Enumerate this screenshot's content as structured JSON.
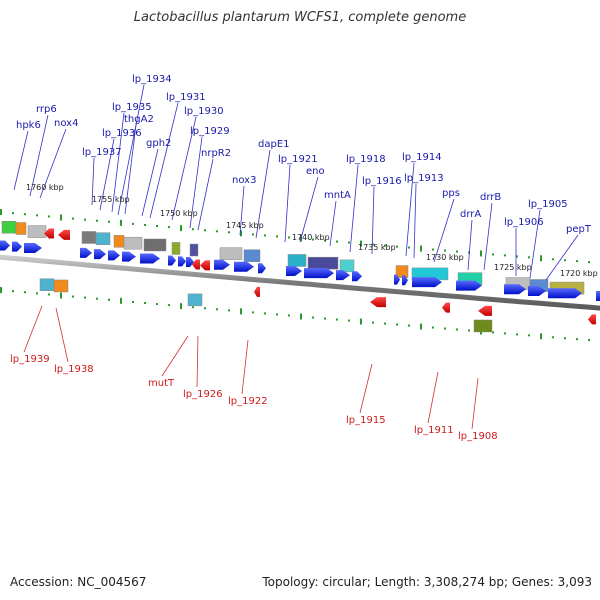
{
  "title": "Lactobacillus plantarum WCFS1, complete genome",
  "accession_label": "Accession: NC_004567",
  "stats_label": "Topology: circular; Length: 3,308,274 bp; Genes: 3,093",
  "colors": {
    "forward_gene": "#0a1ee6",
    "reverse_gene": "#e00000",
    "forward_label": "#1a1aa8",
    "reverse_label": "#cc1b1b",
    "backbone": "#808080",
    "tick": "#2a9a2a"
  },
  "kbp_markers": [
    "1760 kbp",
    "1755 kbp",
    "1750 kbp",
    "1745 kbp",
    "1740 kbp",
    "1735 kbp",
    "1730 kbp",
    "1725 kbp",
    "1720 kbp"
  ],
  "forward_labels": [
    "hpk6",
    "rrp6",
    "nox4",
    "lp_1937",
    "lp_1936",
    "lp_1935",
    "lp_1934",
    "thgA2",
    "gph2",
    "lp_1931",
    "lp_1930",
    "lp_1929",
    "nrpR2",
    "nox3",
    "dapE1",
    "lp_1921",
    "eno",
    "mntA",
    "lp_1918",
    "lp_1916",
    "lp_1914",
    "lp_1913",
    "pps",
    "drrA",
    "drrB",
    "lp_1906",
    "lp_1905",
    "pepT"
  ],
  "reverse_labels": [
    "lp_1939",
    "lp_1938",
    "mutT",
    "lp_1926",
    "lp_1922",
    "lp_1915",
    "lp_1911",
    "lp_1908"
  ]
}
